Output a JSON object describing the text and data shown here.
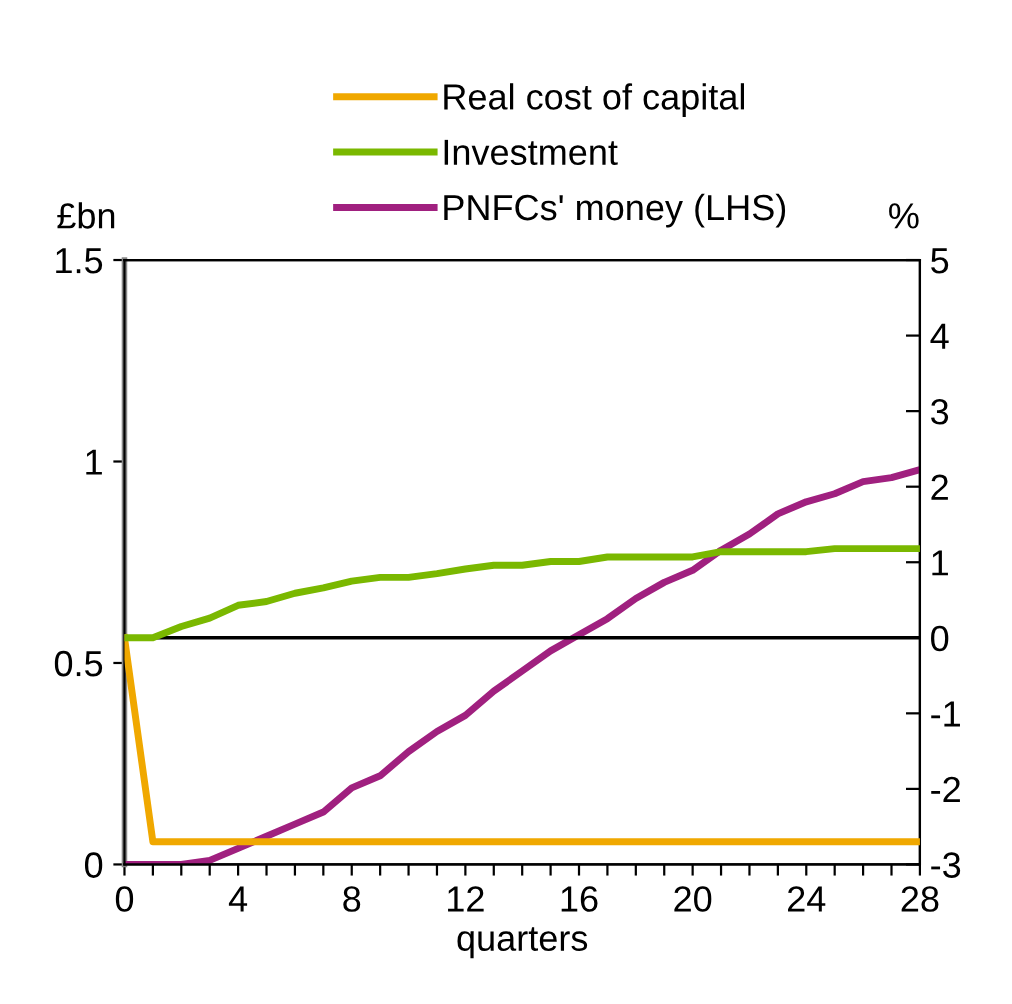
{
  "chart_data": {
    "type": "line",
    "x": [
      0,
      1,
      2,
      3,
      4,
      5,
      6,
      7,
      8,
      9,
      10,
      11,
      12,
      13,
      14,
      15,
      16,
      17,
      18,
      19,
      20,
      21,
      22,
      23,
      24,
      25,
      26,
      27,
      28
    ],
    "series": [
      {
        "name": "Real cost of capital",
        "color": "#f0a800",
        "axis": "y2",
        "values": [
          0,
          -2.7,
          -2.7,
          -2.7,
          -2.7,
          -2.7,
          -2.7,
          -2.7,
          -2.7,
          -2.7,
          -2.7,
          -2.7,
          -2.7,
          -2.7,
          -2.7,
          -2.7,
          -2.7,
          -2.7,
          -2.7,
          -2.7,
          -2.7,
          -2.7,
          -2.7,
          -2.7,
          -2.7,
          -2.7,
          -2.7,
          -2.7,
          -2.7
        ]
      },
      {
        "name": "Investment",
        "color": "#7ab800",
        "axis": "y2",
        "values": [
          0,
          0,
          0.15,
          0.26,
          0.43,
          0.48,
          0.59,
          0.66,
          0.75,
          0.8,
          0.8,
          0.85,
          0.91,
          0.96,
          0.96,
          1.01,
          1.01,
          1.07,
          1.07,
          1.07,
          1.07,
          1.14,
          1.14,
          1.14,
          1.14,
          1.18,
          1.18,
          1.18,
          1.18
        ]
      },
      {
        "name": "PNFCs' money (LHS)",
        "color": "#a0207f",
        "values": [
          0,
          0,
          0,
          0.01,
          0.04,
          0.07,
          0.1,
          0.13,
          0.19,
          0.22,
          0.28,
          0.33,
          0.37,
          0.43,
          0.48,
          0.53,
          0.57,
          0.61,
          0.66,
          0.7,
          0.73,
          0.78,
          0.82,
          0.87,
          0.9,
          0.92,
          0.95,
          0.96,
          0.98
        ]
      }
    ],
    "xlabel": "quarters",
    "ylabel": "£bn",
    "y2label": "%",
    "xlim": [
      0,
      28
    ],
    "xticks": [
      0,
      {
        "value": 1,
        "label": null
      },
      {
        "value": 2,
        "label": null
      },
      {
        "value": 3,
        "label": null
      },
      4,
      {
        "value": 5,
        "label": null
      },
      {
        "value": 6,
        "label": null
      },
      {
        "value": 7,
        "label": null
      },
      8,
      {
        "value": 9,
        "label": null
      },
      {
        "value": 10,
        "label": null
      },
      {
        "value": 11,
        "label": null
      },
      12,
      {
        "value": 13,
        "label": null
      },
      {
        "value": 14,
        "label": null
      },
      {
        "value": 15,
        "label": null
      },
      16,
      {
        "value": 17,
        "label": null
      },
      {
        "value": 18,
        "label": null
      },
      {
        "value": 19,
        "label": null
      },
      20,
      {
        "value": 21,
        "label": null
      },
      {
        "value": 22,
        "label": null
      },
      {
        "value": 23,
        "label": null
      },
      24,
      {
        "value": 25,
        "label": null
      },
      {
        "value": 26,
        "label": null
      },
      {
        "value": 27,
        "label": null
      },
      28
    ],
    "ylim": [
      0,
      1.5
    ],
    "yticks": [
      0,
      0.5,
      1,
      1.5
    ],
    "y2lim": [
      -3,
      5
    ],
    "y2ticks": [
      -3,
      -2,
      -1,
      0,
      1,
      2,
      3,
      4,
      5
    ],
    "ref_lines": [
      {
        "axis": "y2",
        "value": 0,
        "color": "#000000"
      }
    ],
    "grid": false,
    "legend": "top",
    "marker": "none",
    "line_style": "solid"
  }
}
